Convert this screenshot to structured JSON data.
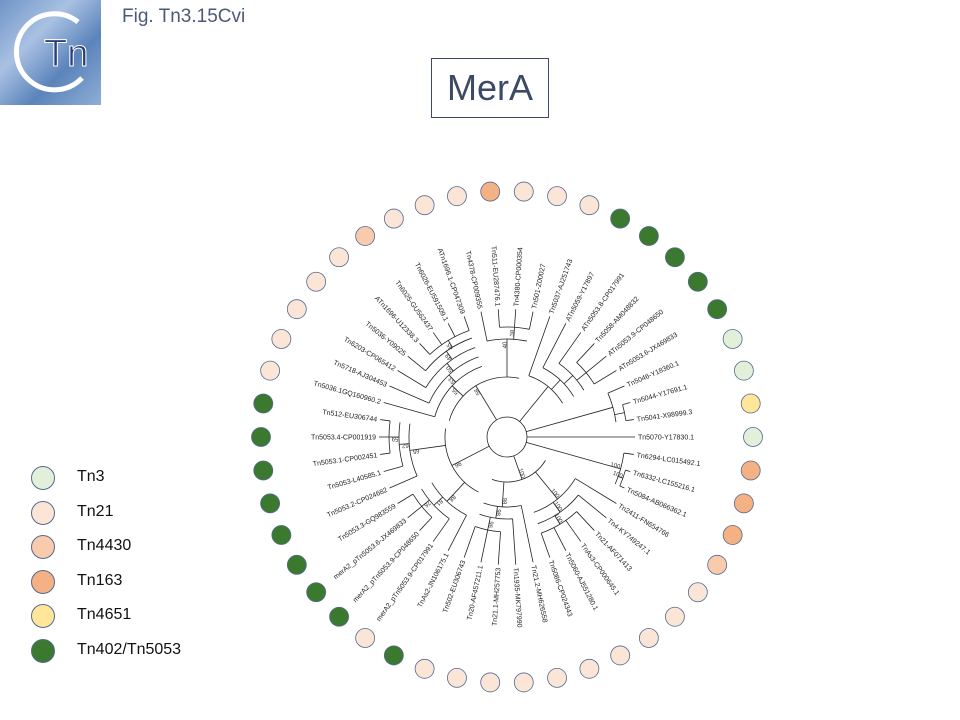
{
  "header": {
    "fig_label": "Fig. Tn3.15Cvi",
    "title": "MerA",
    "logo_text": "Tn"
  },
  "legend": [
    {
      "label": "Tn3",
      "color": "#e2f0d9"
    },
    {
      "label": "Tn21",
      "color": "#fbe5d6"
    },
    {
      "label": "Tn4430",
      "color": "#f8cbad"
    },
    {
      "label": "Tn163",
      "color": "#f4b183"
    },
    {
      "label": "Tn4651",
      "color": "#ffe699"
    },
    {
      "label": "Tn402/Tn5053",
      "color": "#3b7a2e"
    }
  ],
  "tree": {
    "leaves": [
      {
        "name": "Tn5070-Y17830.1",
        "group": "Tn3"
      },
      {
        "name": "Tn6294-LC015492.1",
        "group": "Tn163"
      },
      {
        "name": "Tn6332-LC155216.1",
        "group": "Tn163"
      },
      {
        "name": "Tn5084-AB066362.1",
        "group": "Tn163"
      },
      {
        "name": "Tn2411-FN654766",
        "group": "Tn4430"
      },
      {
        "name": "Tn4-KY749247.1",
        "group": "Tn21"
      },
      {
        "name": "Tn21-AF071413",
        "group": "Tn21"
      },
      {
        "name": "TnAs3-CP000645.1",
        "group": "Tn21"
      },
      {
        "name": "Tn5060-AJ551280.1",
        "group": "Tn21"
      },
      {
        "name": "Tn5086-CP024343",
        "group": "Tn21"
      },
      {
        "name": "Tn21.2-MH626558",
        "group": "Tn21"
      },
      {
        "name": "Tn1935-MK797990",
        "group": "Tn21"
      },
      {
        "name": "Tn21.1-MH257753",
        "group": "Tn21"
      },
      {
        "name": "Tn20-AF457211.1",
        "group": "Tn21"
      },
      {
        "name": "Tn502-EU306743",
        "group": "Tn21"
      },
      {
        "name": "TnAs2-JN106175.1",
        "group": "Tn402/Tn5053"
      },
      {
        "name": "merA2_pTn5053.9-CP017991",
        "group": "Tn21"
      },
      {
        "name": "merA2_pTn5053.9-CP048650",
        "group": "Tn402/Tn5053"
      },
      {
        "name": "merA2_pTn5053.6-JX469833",
        "group": "Tn402/Tn5053"
      },
      {
        "name": "Tn5053.3-GQ983559",
        "group": "Tn402/Tn5053"
      },
      {
        "name": "Tn5053.2-CP024682",
        "group": "Tn402/Tn5053"
      },
      {
        "name": "Tn5053-L40585.1",
        "group": "Tn402/Tn5053"
      },
      {
        "name": "Tn5053.1-CP002451",
        "group": "Tn402/Tn5053"
      },
      {
        "name": "Tn5053.4-CP001919",
        "group": "Tn402/Tn5053"
      },
      {
        "name": "Tn512-EU306744",
        "group": "Tn402/Tn5053"
      },
      {
        "name": "Tn5036.1GQ160960.2",
        "group": "Tn21"
      },
      {
        "name": "Tn5718-AJ304453",
        "group": "Tn21"
      },
      {
        "name": "Tn6203-CP065412",
        "group": "Tn21"
      },
      {
        "name": "Tn5036-Y09025",
        "group": "Tn21"
      },
      {
        "name": "ATn1696-U12338.3",
        "group": "Tn21"
      },
      {
        "name": "Tn6025-GU562437",
        "group": "Tn4430"
      },
      {
        "name": "Tn6026-EU591509.1",
        "group": "Tn21"
      },
      {
        "name": "ATn1696.1-CP047309",
        "group": "Tn21"
      },
      {
        "name": "Tn4378-CP009355",
        "group": "Tn21"
      },
      {
        "name": "Tn511-EU287476.1",
        "group": "Tn163"
      },
      {
        "name": "Tn4380-CP000354",
        "group": "Tn21"
      },
      {
        "name": "Tn501-Z00027",
        "group": "Tn21"
      },
      {
        "name": "Tn5037-AJ251743",
        "group": "Tn21"
      },
      {
        "name": "ATn5059-Y17897",
        "group": "Tn402/Tn5053"
      },
      {
        "name": "ATn5053.8-CP017991",
        "group": "Tn402/Tn5053"
      },
      {
        "name": "Tn5058-AM048832",
        "group": "Tn402/Tn5053"
      },
      {
        "name": "ATn5053.9-CP048650",
        "group": "Tn402/Tn5053"
      },
      {
        "name": "ATn5053.6-JX469833",
        "group": "Tn402/Tn5053"
      },
      {
        "name": "Tn5046-Y18360.1",
        "group": "Tn3"
      },
      {
        "name": "Tn5044-Y17691.1",
        "group": "Tn3"
      },
      {
        "name": "Tn5041-X98999.3",
        "group": "Tn4651"
      }
    ],
    "bootstrap_labels": [
      "100",
      "100",
      "100",
      "100",
      "100",
      "100",
      "98",
      "98",
      "96",
      "96",
      "88",
      "81",
      "76",
      "65",
      "62",
      "59",
      "58",
      "55",
      "53",
      "50",
      "49",
      "45",
      "40",
      "38"
    ]
  }
}
